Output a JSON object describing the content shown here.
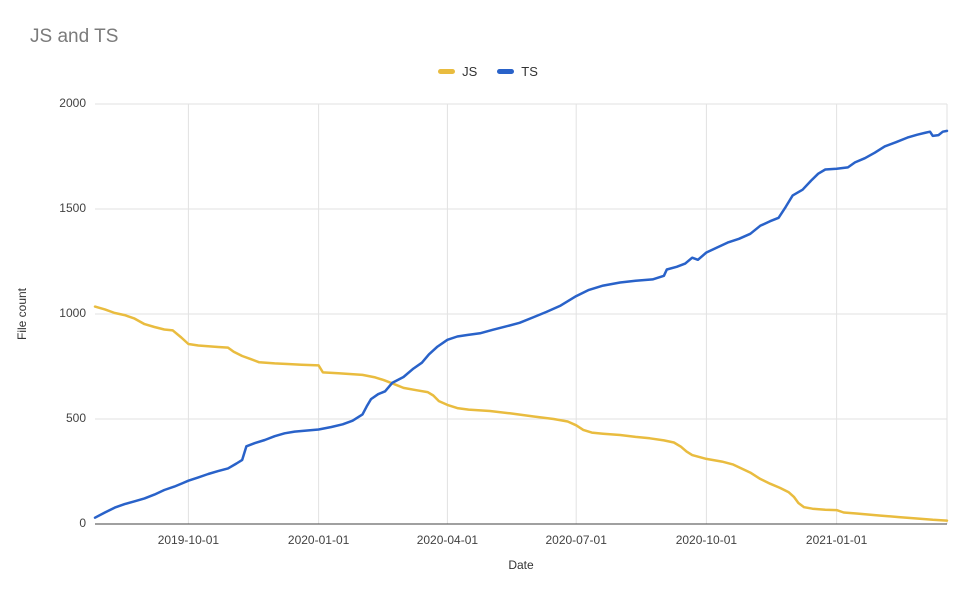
{
  "page": {
    "background": "#ffffff"
  },
  "chart_data": {
    "type": "line",
    "title": "JS and TS",
    "xlabel": "Date",
    "ylabel": "File count",
    "legend_position": "top",
    "grid": true,
    "ylim": [
      0,
      2000
    ],
    "y_ticks": [
      0,
      500,
      1000,
      1500,
      2000
    ],
    "x_ticks": [
      "2019-10-01",
      "2020-01-01",
      "2020-04-01",
      "2020-07-01",
      "2020-10-01",
      "2021-01-01"
    ],
    "x_domain": [
      "2019-07-27",
      "2021-03-20"
    ],
    "colors": {
      "js": "#E9BC3F",
      "ts": "#2962C9",
      "gridline": "#e2e2e2",
      "axis_line": "#424242"
    },
    "series": [
      {
        "name": "JS",
        "color": "#E9BC3F",
        "points": [
          [
            "2019-07-27",
            1035
          ],
          [
            "2019-08-03",
            1022
          ],
          [
            "2019-08-10",
            1005
          ],
          [
            "2019-08-17",
            995
          ],
          [
            "2019-08-24",
            978
          ],
          [
            "2019-08-31",
            952
          ],
          [
            "2019-09-07",
            938
          ],
          [
            "2019-09-14",
            926
          ],
          [
            "2019-09-20",
            922
          ],
          [
            "2019-09-26",
            888
          ],
          [
            "2019-10-01",
            857
          ],
          [
            "2019-10-08",
            850
          ],
          [
            "2019-10-15",
            846
          ],
          [
            "2019-10-22",
            843
          ],
          [
            "2019-10-29",
            840
          ],
          [
            "2019-11-02",
            820
          ],
          [
            "2019-11-08",
            800
          ],
          [
            "2019-11-14",
            785
          ],
          [
            "2019-11-20",
            770
          ],
          [
            "2019-12-01",
            765
          ],
          [
            "2019-12-10",
            762
          ],
          [
            "2019-12-20",
            758
          ],
          [
            "2020-01-01",
            755
          ],
          [
            "2020-01-04",
            722
          ],
          [
            "2020-01-15",
            718
          ],
          [
            "2020-02-01",
            710
          ],
          [
            "2020-02-10",
            698
          ],
          [
            "2020-02-16",
            685
          ],
          [
            "2020-02-22",
            670
          ],
          [
            "2020-03-01",
            648
          ],
          [
            "2020-03-10",
            637
          ],
          [
            "2020-03-18",
            628
          ],
          [
            "2020-03-22",
            612
          ],
          [
            "2020-03-26",
            585
          ],
          [
            "2020-04-01",
            567
          ],
          [
            "2020-04-08",
            552
          ],
          [
            "2020-04-16",
            545
          ],
          [
            "2020-05-01",
            538
          ],
          [
            "2020-05-15",
            527
          ],
          [
            "2020-06-01",
            512
          ],
          [
            "2020-06-15",
            500
          ],
          [
            "2020-06-25",
            488
          ],
          [
            "2020-07-01",
            470
          ],
          [
            "2020-07-06",
            448
          ],
          [
            "2020-07-12",
            435
          ],
          [
            "2020-07-20",
            430
          ],
          [
            "2020-08-01",
            424
          ],
          [
            "2020-08-12",
            415
          ],
          [
            "2020-08-22",
            408
          ],
          [
            "2020-09-01",
            398
          ],
          [
            "2020-09-08",
            388
          ],
          [
            "2020-09-13",
            368
          ],
          [
            "2020-09-17",
            345
          ],
          [
            "2020-09-21",
            328
          ],
          [
            "2020-10-01",
            310
          ],
          [
            "2020-10-12",
            297
          ],
          [
            "2020-10-20",
            283
          ],
          [
            "2020-11-01",
            245
          ],
          [
            "2020-11-08",
            215
          ],
          [
            "2020-11-15",
            192
          ],
          [
            "2020-11-22",
            172
          ],
          [
            "2020-11-28",
            152
          ],
          [
            "2020-12-02",
            128
          ],
          [
            "2020-12-05",
            100
          ],
          [
            "2020-12-09",
            80
          ],
          [
            "2020-12-15",
            73
          ],
          [
            "2020-12-24",
            68
          ],
          [
            "2021-01-01",
            66
          ],
          [
            "2021-01-06",
            55
          ],
          [
            "2021-01-15",
            50
          ],
          [
            "2021-02-01",
            40
          ],
          [
            "2021-02-14",
            33
          ],
          [
            "2021-03-01",
            25
          ],
          [
            "2021-03-10",
            20
          ],
          [
            "2021-03-20",
            16
          ]
        ]
      },
      {
        "name": "TS",
        "color": "#2962C9",
        "points": [
          [
            "2019-07-27",
            30
          ],
          [
            "2019-08-03",
            55
          ],
          [
            "2019-08-10",
            78
          ],
          [
            "2019-08-17",
            95
          ],
          [
            "2019-08-24",
            108
          ],
          [
            "2019-08-31",
            122
          ],
          [
            "2019-09-07",
            140
          ],
          [
            "2019-09-14",
            162
          ],
          [
            "2019-09-21",
            178
          ],
          [
            "2019-09-27",
            195
          ],
          [
            "2019-10-01",
            206
          ],
          [
            "2019-10-08",
            222
          ],
          [
            "2019-10-15",
            238
          ],
          [
            "2019-10-22",
            252
          ],
          [
            "2019-10-29",
            265
          ],
          [
            "2019-11-04",
            288
          ],
          [
            "2019-11-08",
            305
          ],
          [
            "2019-11-11",
            370
          ],
          [
            "2019-11-17",
            385
          ],
          [
            "2019-11-24",
            400
          ],
          [
            "2019-12-01",
            418
          ],
          [
            "2019-12-08",
            432
          ],
          [
            "2019-12-15",
            440
          ],
          [
            "2019-12-22",
            444
          ],
          [
            "2020-01-01",
            450
          ],
          [
            "2020-01-10",
            462
          ],
          [
            "2020-01-18",
            475
          ],
          [
            "2020-01-25",
            492
          ],
          [
            "2020-02-01",
            522
          ],
          [
            "2020-02-04",
            560
          ],
          [
            "2020-02-07",
            595
          ],
          [
            "2020-02-12",
            618
          ],
          [
            "2020-02-17",
            632
          ],
          [
            "2020-02-22",
            672
          ],
          [
            "2020-03-01",
            700
          ],
          [
            "2020-03-08",
            740
          ],
          [
            "2020-03-14",
            768
          ],
          [
            "2020-03-19",
            808
          ],
          [
            "2020-03-25",
            845
          ],
          [
            "2020-04-01",
            877
          ],
          [
            "2020-04-08",
            893
          ],
          [
            "2020-04-15",
            900
          ],
          [
            "2020-04-24",
            908
          ],
          [
            "2020-05-03",
            925
          ],
          [
            "2020-05-12",
            940
          ],
          [
            "2020-05-22",
            958
          ],
          [
            "2020-06-01",
            985
          ],
          [
            "2020-06-10",
            1010
          ],
          [
            "2020-06-20",
            1040
          ],
          [
            "2020-07-01",
            1085
          ],
          [
            "2020-07-10",
            1115
          ],
          [
            "2020-07-20",
            1135
          ],
          [
            "2020-08-01",
            1150
          ],
          [
            "2020-08-12",
            1158
          ],
          [
            "2020-08-24",
            1165
          ],
          [
            "2020-09-01",
            1182
          ],
          [
            "2020-09-03",
            1212
          ],
          [
            "2020-09-10",
            1225
          ],
          [
            "2020-09-16",
            1240
          ],
          [
            "2020-09-21",
            1268
          ],
          [
            "2020-09-25",
            1258
          ],
          [
            "2020-10-01",
            1293
          ],
          [
            "2020-10-08",
            1315
          ],
          [
            "2020-10-16",
            1340
          ],
          [
            "2020-10-24",
            1358
          ],
          [
            "2020-11-01",
            1382
          ],
          [
            "2020-11-08",
            1420
          ],
          [
            "2020-11-15",
            1442
          ],
          [
            "2020-11-21",
            1458
          ],
          [
            "2020-11-26",
            1510
          ],
          [
            "2020-12-01",
            1565
          ],
          [
            "2020-12-08",
            1592
          ],
          [
            "2020-12-14",
            1635
          ],
          [
            "2020-12-19",
            1668
          ],
          [
            "2020-12-24",
            1688
          ],
          [
            "2021-01-01",
            1692
          ],
          [
            "2021-01-09",
            1698
          ],
          [
            "2021-01-14",
            1722
          ],
          [
            "2021-01-21",
            1742
          ],
          [
            "2021-01-28",
            1768
          ],
          [
            "2021-02-04",
            1798
          ],
          [
            "2021-02-12",
            1818
          ],
          [
            "2021-02-20",
            1840
          ],
          [
            "2021-02-27",
            1854
          ],
          [
            "2021-03-05",
            1864
          ],
          [
            "2021-03-08",
            1868
          ],
          [
            "2021-03-10",
            1848
          ],
          [
            "2021-03-14",
            1852
          ],
          [
            "2021-03-17",
            1868
          ],
          [
            "2021-03-20",
            1872
          ]
        ]
      }
    ]
  }
}
